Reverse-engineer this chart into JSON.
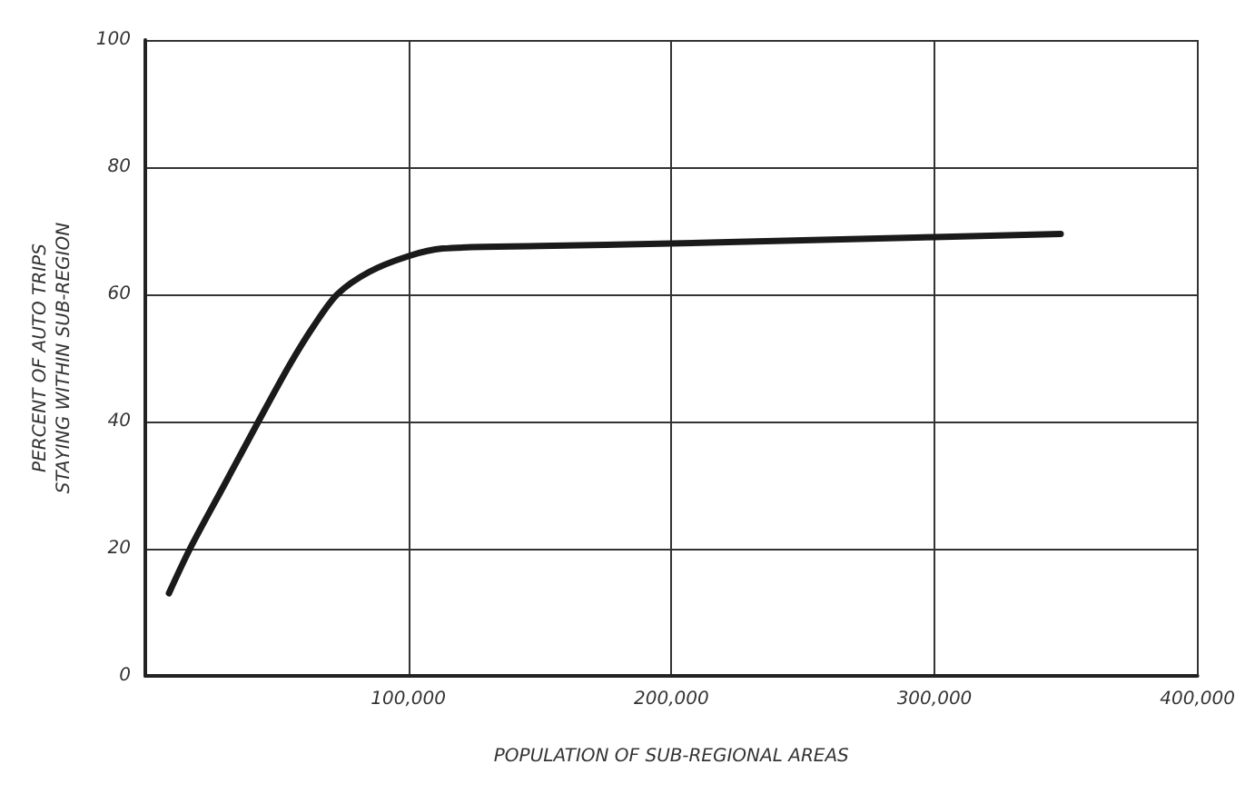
{
  "chart_data": {
    "type": "line",
    "xlabel": "POPULATION OF SUB-REGIONAL AREAS",
    "ylabel": "PERCENT OF AUTO TRIPS\nSTAYING WITHIN SUB-REGION",
    "series": [
      {
        "color": "#1a1a1a",
        "x": [
          9000,
          17000,
          30000,
          43000,
          55000,
          64000,
          73000,
          85000,
          100000,
          113000,
          150000,
          200000,
          250000,
          300000,
          348000
        ],
        "values": [
          13,
          20,
          30,
          40,
          49,
          55,
          60,
          63.5,
          66,
          67.2,
          67.6,
          68,
          68.5,
          69,
          69.5
        ]
      }
    ],
    "xlim": [
      0,
      400000
    ],
    "xticks": [
      {
        "value": 0,
        "label": null
      },
      {
        "value": 100000,
        "label": "100,000"
      },
      {
        "value": 200000,
        "label": "200,000"
      },
      {
        "value": 300000,
        "label": "300,000"
      },
      {
        "value": 400000,
        "label": "400,000"
      }
    ],
    "ylim": [
      0,
      100
    ],
    "yticks": [
      0,
      20,
      40,
      60,
      80,
      100
    ],
    "grid": true,
    "marker": "none",
    "line_style": "solid"
  }
}
